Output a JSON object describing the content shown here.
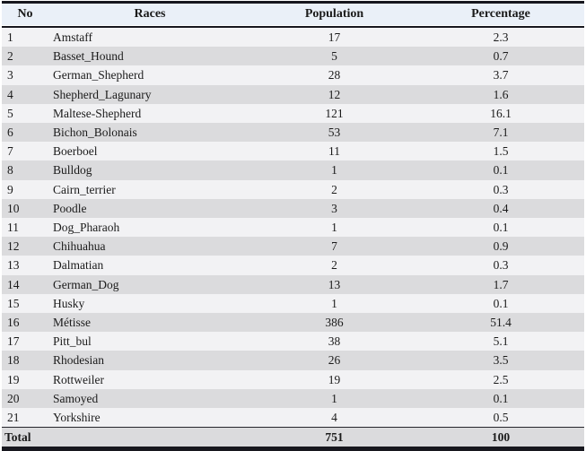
{
  "colors": {
    "header_bg": "#eaf0f8",
    "row_odd": "#f2f2f4",
    "row_even": "#dbdbdd",
    "border_dark": "#17171e",
    "total_rule": "#26262c",
    "text": "#1b1b1b"
  },
  "chart_data": {
    "type": "table",
    "columns": [
      "No",
      "Races",
      "Population",
      "Percentage"
    ],
    "rows": [
      [
        1,
        "Amstaff",
        17,
        2.3
      ],
      [
        2,
        "Basset_Hound",
        5,
        0.7
      ],
      [
        3,
        "German_Shepherd",
        28,
        3.7
      ],
      [
        4,
        "Shepherd_Lagunary",
        12,
        1.6
      ],
      [
        5,
        "Maltese-Shepherd",
        121,
        16.1
      ],
      [
        6,
        "Bichon_Bolonais",
        53,
        7.1
      ],
      [
        7,
        "Boerboel",
        11,
        1.5
      ],
      [
        8,
        "Bulldog",
        1,
        0.1
      ],
      [
        9,
        "Cairn_terrier",
        2,
        0.3
      ],
      [
        10,
        "Poodle",
        3,
        0.4
      ],
      [
        11,
        "Dog_Pharaoh",
        1,
        0.1
      ],
      [
        12,
        "Chihuahua",
        7,
        0.9
      ],
      [
        13,
        "Dalmatian",
        2,
        0.3
      ],
      [
        14,
        "German_Dog",
        13,
        1.7
      ],
      [
        15,
        "Husky",
        1,
        0.1
      ],
      [
        16,
        "Métisse",
        386,
        51.4
      ],
      [
        17,
        "Pitt_bul",
        38,
        5.1
      ],
      [
        18,
        "Rhodesian",
        26,
        3.5
      ],
      [
        19,
        "Rottweiler",
        19,
        2.5
      ],
      [
        20,
        "Samoyed",
        1,
        0.1
      ],
      [
        21,
        "Yorkshire",
        4,
        0.5
      ]
    ],
    "total_row": [
      "Total",
      "",
      751,
      100
    ],
    "title": "",
    "layout_hints": {
      "striped": true,
      "header_position": "top",
      "numeric_columns_centered": true
    }
  }
}
